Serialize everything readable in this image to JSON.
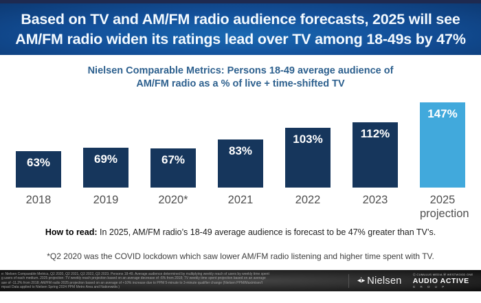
{
  "header": {
    "title_line1": "Based on TV and AM/FM radio audience forecasts, 2025 will see",
    "title_line2": "AM/FM radio widen its ratings lead over TV among 18-49s by 47%",
    "bg_color": "#13509a",
    "text_color": "#f4faff"
  },
  "chart_data": {
    "type": "bar",
    "title": "Nielsen Comparable Metrics: Persons 18-49 average audience of AM/FM radio as a % of live + time-shifted TV",
    "title_line1": "Nielsen Comparable Metrics: Persons 18-49 average audience of",
    "title_line2": "AM/FM radio as a % of live + time-shifted TV",
    "categories": [
      "2018",
      "2019",
      "2020*",
      "2021",
      "2022",
      "2023",
      "2025 projection"
    ],
    "values": [
      63,
      69,
      67,
      83,
      103,
      112,
      147
    ],
    "data_labels": [
      "63%",
      "69%",
      "67%",
      "83%",
      "103%",
      "112%",
      "147%"
    ],
    "bar_color": "#16365C",
    "highlight_bar_color": "#41A9DC",
    "highlight_index": 6,
    "label_color": "#ffffff",
    "tick_color": "#4f4f4f",
    "ylim": [
      0,
      160
    ],
    "grid": false,
    "legend": false,
    "xlabel": "",
    "ylabel": ""
  },
  "notes": {
    "how_to_read_label": "How to read:",
    "how_to_read_text": " In 2025, AM/FM radio’s 18-49 average audience is forecast to be 47% greater than TV’s.",
    "footnote": "*Q2 2020 was the COVID lockdown which saw lower AM/FM radio listening and higher time spent with TV."
  },
  "footer": {
    "source_lines": [
      "e: Nielsen Comparable Metrics, Q2 2020, Q2 2021, Q2 2022, Q3 2023. Persons 18-49. Average audience determined by multiplying weekly reach of users by weekly time spent",
      "g users of each medium. 2025 projection: TV weekly reach projection based on an average decrease of -6% from 2018; TV weekly time spent projection based on an average",
      "ase of -11.2% from 2018; AM/FM radio 2025 projection based on an average of +10% increase due to PPM 5-minute to 3-minute qualifier change (Nielsen PPM/Maximiser/I",
      "mpact Data applied to Nielsen Spring 2024 PPM Metro Area and Nationwide.)"
    ],
    "nielsen_mark": "◂⁚▸",
    "nielsen_logo_text": "Nielsen",
    "brand_mini_left": "Ⓒ CUMULUS MEDIA",
    "brand_mini_right": "Ⓦ WESTWOOD ONE",
    "audio_active": "AUDIO ACTIVE",
    "group": "G R O U P"
  }
}
